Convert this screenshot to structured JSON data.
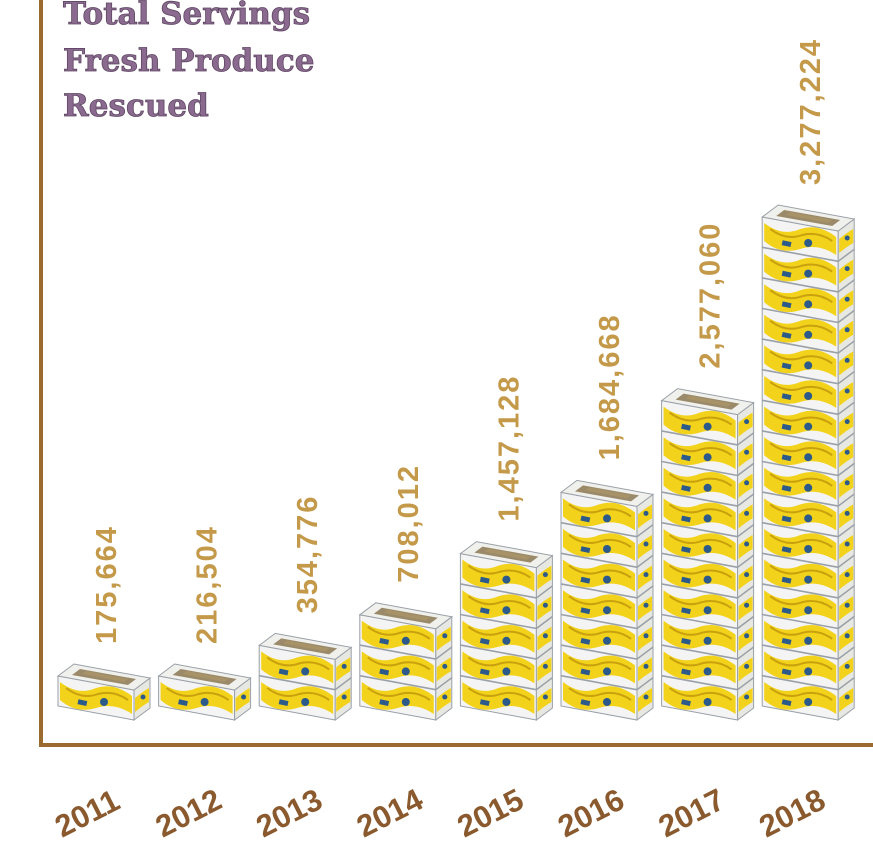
{
  "chart_data": {
    "type": "bar",
    "title_lines": [
      "Total Servings",
      "Fresh Produce",
      "Rescued"
    ],
    "categories": [
      "2011",
      "2012",
      "2013",
      "2014",
      "2015",
      "2016",
      "2017",
      "2018"
    ],
    "values": [
      175664,
      216504,
      354776,
      708012,
      1457128,
      1684668,
      2577060,
      3277224
    ],
    "value_labels": [
      "175,664",
      "216,504",
      "354,776",
      "708,012",
      "1,457,128",
      "1,684,668",
      "2,577,060",
      "3,277,224"
    ],
    "stack_counts": [
      1,
      1,
      2,
      3,
      5,
      7,
      10,
      16
    ],
    "xlabel": "",
    "ylabel": "",
    "grid": false,
    "legend": "none",
    "colors": {
      "axis": "#9a6b2e",
      "value_label": "#c49a4a",
      "year_label": "#8a5a2e",
      "title": "#8a6a8e",
      "box_yellow": "#f2d21a",
      "box_white": "#f4f4f4",
      "box_top": "#9a8a6a",
      "box_blue": "#2c5a8a"
    },
    "icons": [
      "banana-box-icon"
    ]
  }
}
